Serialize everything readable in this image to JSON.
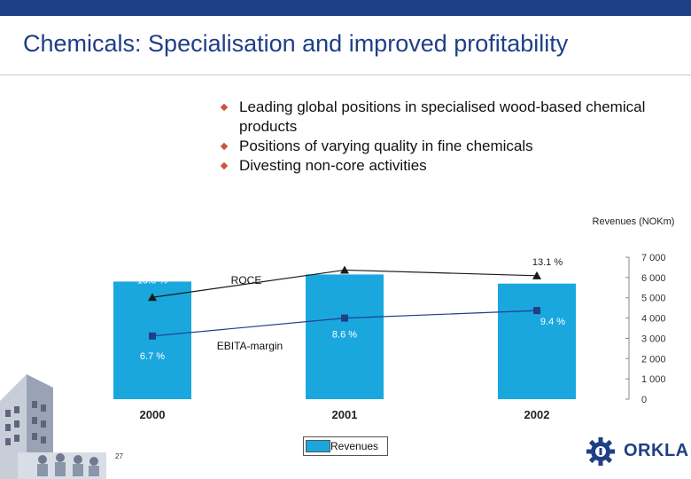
{
  "slide": {
    "title": "Chemicals: Specialisation and improved profitability",
    "bullets": [
      "Leading global positions in specialised wood-based chemical products",
      "Positions of varying quality in fine chemicals",
      "Divesting non-core activities"
    ],
    "page_number": "27",
    "logo_text": "ORKLA",
    "colors": {
      "brand_blue": "#1f3f86",
      "bar_blue": "#1aa7de",
      "bullet": "#c8573a"
    }
  },
  "chart_data": {
    "type": "bar",
    "categories": [
      "2000",
      "2001",
      "2002"
    ],
    "series": [
      {
        "name": "Revenues",
        "values": [
          5800,
          6150,
          5700
        ],
        "color": "#1aa7de"
      }
    ],
    "lines": [
      {
        "name": "ROCE",
        "marker": "triangle",
        "values": [
          10.8,
          13.7,
          13.1
        ],
        "labels": [
          "10.8 %",
          "13.7 %",
          "13.1 %"
        ],
        "color": "#1a1a1a"
      },
      {
        "name": "EBITA-margin",
        "marker": "square",
        "values": [
          6.7,
          8.6,
          9.4
        ],
        "labels": [
          "6.7 %",
          "8.6 %",
          "9.4 %"
        ],
        "color": "#1f3f86"
      }
    ],
    "y_axis": {
      "title": "Revenues (NOKm)",
      "ticks": [
        "7 000",
        "6 000",
        "5 000",
        "4 000",
        "3 000",
        "2 000",
        "1 000",
        "0"
      ],
      "min": 0,
      "max": 7000,
      "side": "right"
    },
    "legend": {
      "position": "bottom-center",
      "entries": [
        "Revenues"
      ]
    }
  }
}
